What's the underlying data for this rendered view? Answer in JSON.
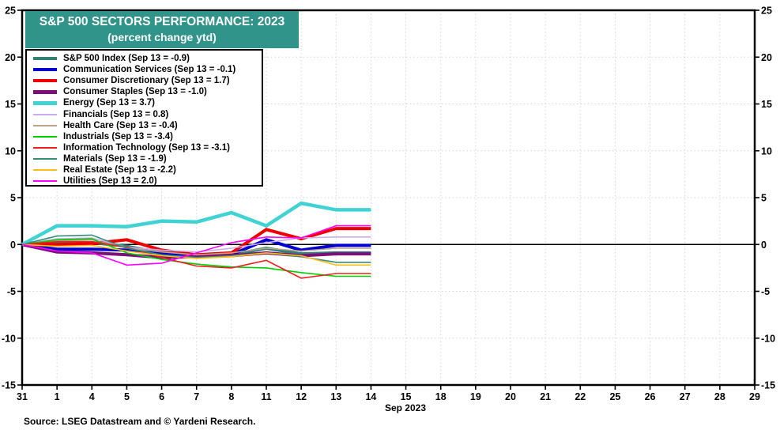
{
  "title": {
    "line1": "S&P 500 SECTORS PERFORMANCE: 2023",
    "line2": "(percent change ytd)"
  },
  "x_axis_label": "Sep 2023",
  "source": "Source: LSEG Datastream and © Yardeni Research.",
  "colors": {
    "title_bg": "#30948A",
    "title_text": "#FFFFFF",
    "grid": "#D6D6D6",
    "axis": "#000000",
    "zero_line": "#000000",
    "background": "#FFFFFF"
  },
  "chart_data": {
    "type": "line",
    "title": "S&P 500 SECTORS PERFORMANCE: 2023",
    "subtitle": "(percent change ytd)",
    "grid": true,
    "legend_position": "top-left",
    "ylim": [
      -15,
      25
    ],
    "y_ticks": [
      25,
      20,
      15,
      10,
      5,
      0,
      -5,
      -10,
      -15
    ],
    "x_tick_labels": [
      "31",
      "1",
      "4",
      "5",
      "6",
      "7",
      "8",
      "11",
      "12",
      "13",
      "14",
      "15",
      "18",
      "19",
      "20",
      "21",
      "22",
      "25",
      "26",
      "27",
      "28",
      "29"
    ],
    "x_month": "Sep 2023",
    "data_x_labels": [
      "31",
      "1",
      "4",
      "5",
      "6",
      "7",
      "8",
      "11",
      "12",
      "13",
      "14"
    ],
    "series": [
      {
        "key": "sp500-index",
        "name": "S&P 500 Index",
        "legend": "S&P 500 Index (Sep 13 = -0.9)",
        "color": "#318175",
        "width": 4,
        "values": [
          0,
          0.2,
          0.2,
          -0.2,
          -0.9,
          -1.2,
          -1.1,
          -0.4,
          -1.0,
          -0.9,
          -0.9
        ]
      },
      {
        "key": "communication-services",
        "name": "Communication Services",
        "legend": "Communication Services (Sep 13 = -0.1)",
        "color": "#0000D0",
        "width": 4,
        "values": [
          0,
          -0.5,
          -0.5,
          -0.6,
          -0.9,
          -1.3,
          -1.1,
          0.5,
          -0.6,
          -0.1,
          -0.1
        ]
      },
      {
        "key": "consumer-discretionary",
        "name": "Consumer Discretionary",
        "legend": "Consumer Discretionary (Sep 13 = 1.7)",
        "color": "#EE0000",
        "width": 4,
        "values": [
          0,
          0.0,
          0.1,
          0.5,
          -0.6,
          -1.1,
          -0.9,
          1.6,
          0.6,
          1.7,
          1.7
        ]
      },
      {
        "key": "consumer-staples",
        "name": "Consumer Staples",
        "legend": "Consumer Staples (Sep 13 = -1.0)",
        "color": "#7B107B",
        "width": 4,
        "values": [
          0,
          -0.8,
          -0.9,
          -1.1,
          -1.4,
          -1.3,
          -1.2,
          -0.9,
          -1.2,
          -1.0,
          -1.0
        ]
      },
      {
        "key": "energy",
        "name": "Energy",
        "legend": "Energy (Sep 13 = 3.7)",
        "color": "#41D3D3",
        "width": 4.5,
        "values": [
          0,
          2.0,
          2.0,
          1.9,
          2.5,
          2.4,
          3.4,
          2.0,
          4.4,
          3.7,
          3.7
        ]
      },
      {
        "key": "financials",
        "name": "Financials",
        "legend": "Financials (Sep 13 = 0.8)",
        "color": "#C9ADEE",
        "width": 1.6,
        "values": [
          0,
          0.6,
          0.7,
          -0.3,
          -0.6,
          -0.8,
          -0.4,
          0.2,
          0.7,
          0.8,
          0.8
        ]
      },
      {
        "key": "health-care",
        "name": "Health Care",
        "legend": "Health Care (Sep 13 = -0.4)",
        "color": "#BDA38A",
        "width": 1.6,
        "values": [
          0,
          0.4,
          0.5,
          -0.4,
          -0.8,
          -1.1,
          -0.9,
          -0.4,
          -0.7,
          -0.4,
          -0.4
        ]
      },
      {
        "key": "industrials",
        "name": "Industrials",
        "legend": "Industrials (Sep 13 = -3.4)",
        "color": "#00CF00",
        "width": 1.6,
        "values": [
          0,
          0.5,
          0.6,
          -0.9,
          -1.6,
          -2.1,
          -2.4,
          -2.5,
          -3.0,
          -3.4,
          -3.4
        ]
      },
      {
        "key": "information-technology",
        "name": "Information Technology",
        "legend": "Information Technology (Sep 13 = -3.1)",
        "color": "#F01E1E",
        "width": 1.6,
        "values": [
          0,
          0.3,
          0.3,
          -0.3,
          -1.4,
          -2.3,
          -2.5,
          -1.7,
          -3.6,
          -3.1,
          -3.1
        ]
      },
      {
        "key": "materials",
        "name": "Materials",
        "legend": "Materials (Sep 13 = -1.9)",
        "color": "#338F7A",
        "width": 1.6,
        "values": [
          0,
          0.9,
          1.0,
          -0.4,
          -1.1,
          -1.4,
          -1.2,
          -0.9,
          -1.3,
          -1.9,
          -1.9
        ]
      },
      {
        "key": "real-estate",
        "name": "Real Estate",
        "legend": "Real Estate (Sep 13 = -2.2)",
        "color": "#FFBE14",
        "width": 1.6,
        "values": [
          0,
          -0.2,
          -0.1,
          -0.7,
          -1.2,
          -1.5,
          -1.3,
          -0.9,
          -1.2,
          -2.2,
          -2.2
        ]
      },
      {
        "key": "utilities",
        "name": "Utilities",
        "legend": "Utilities (Sep 13 = 2.0)",
        "color": "#FF00FF",
        "width": 1.6,
        "values": [
          0,
          -0.7,
          -0.9,
          -2.2,
          -2.0,
          -0.9,
          0.2,
          0.8,
          0.7,
          2.0,
          2.0
        ]
      }
    ]
  }
}
